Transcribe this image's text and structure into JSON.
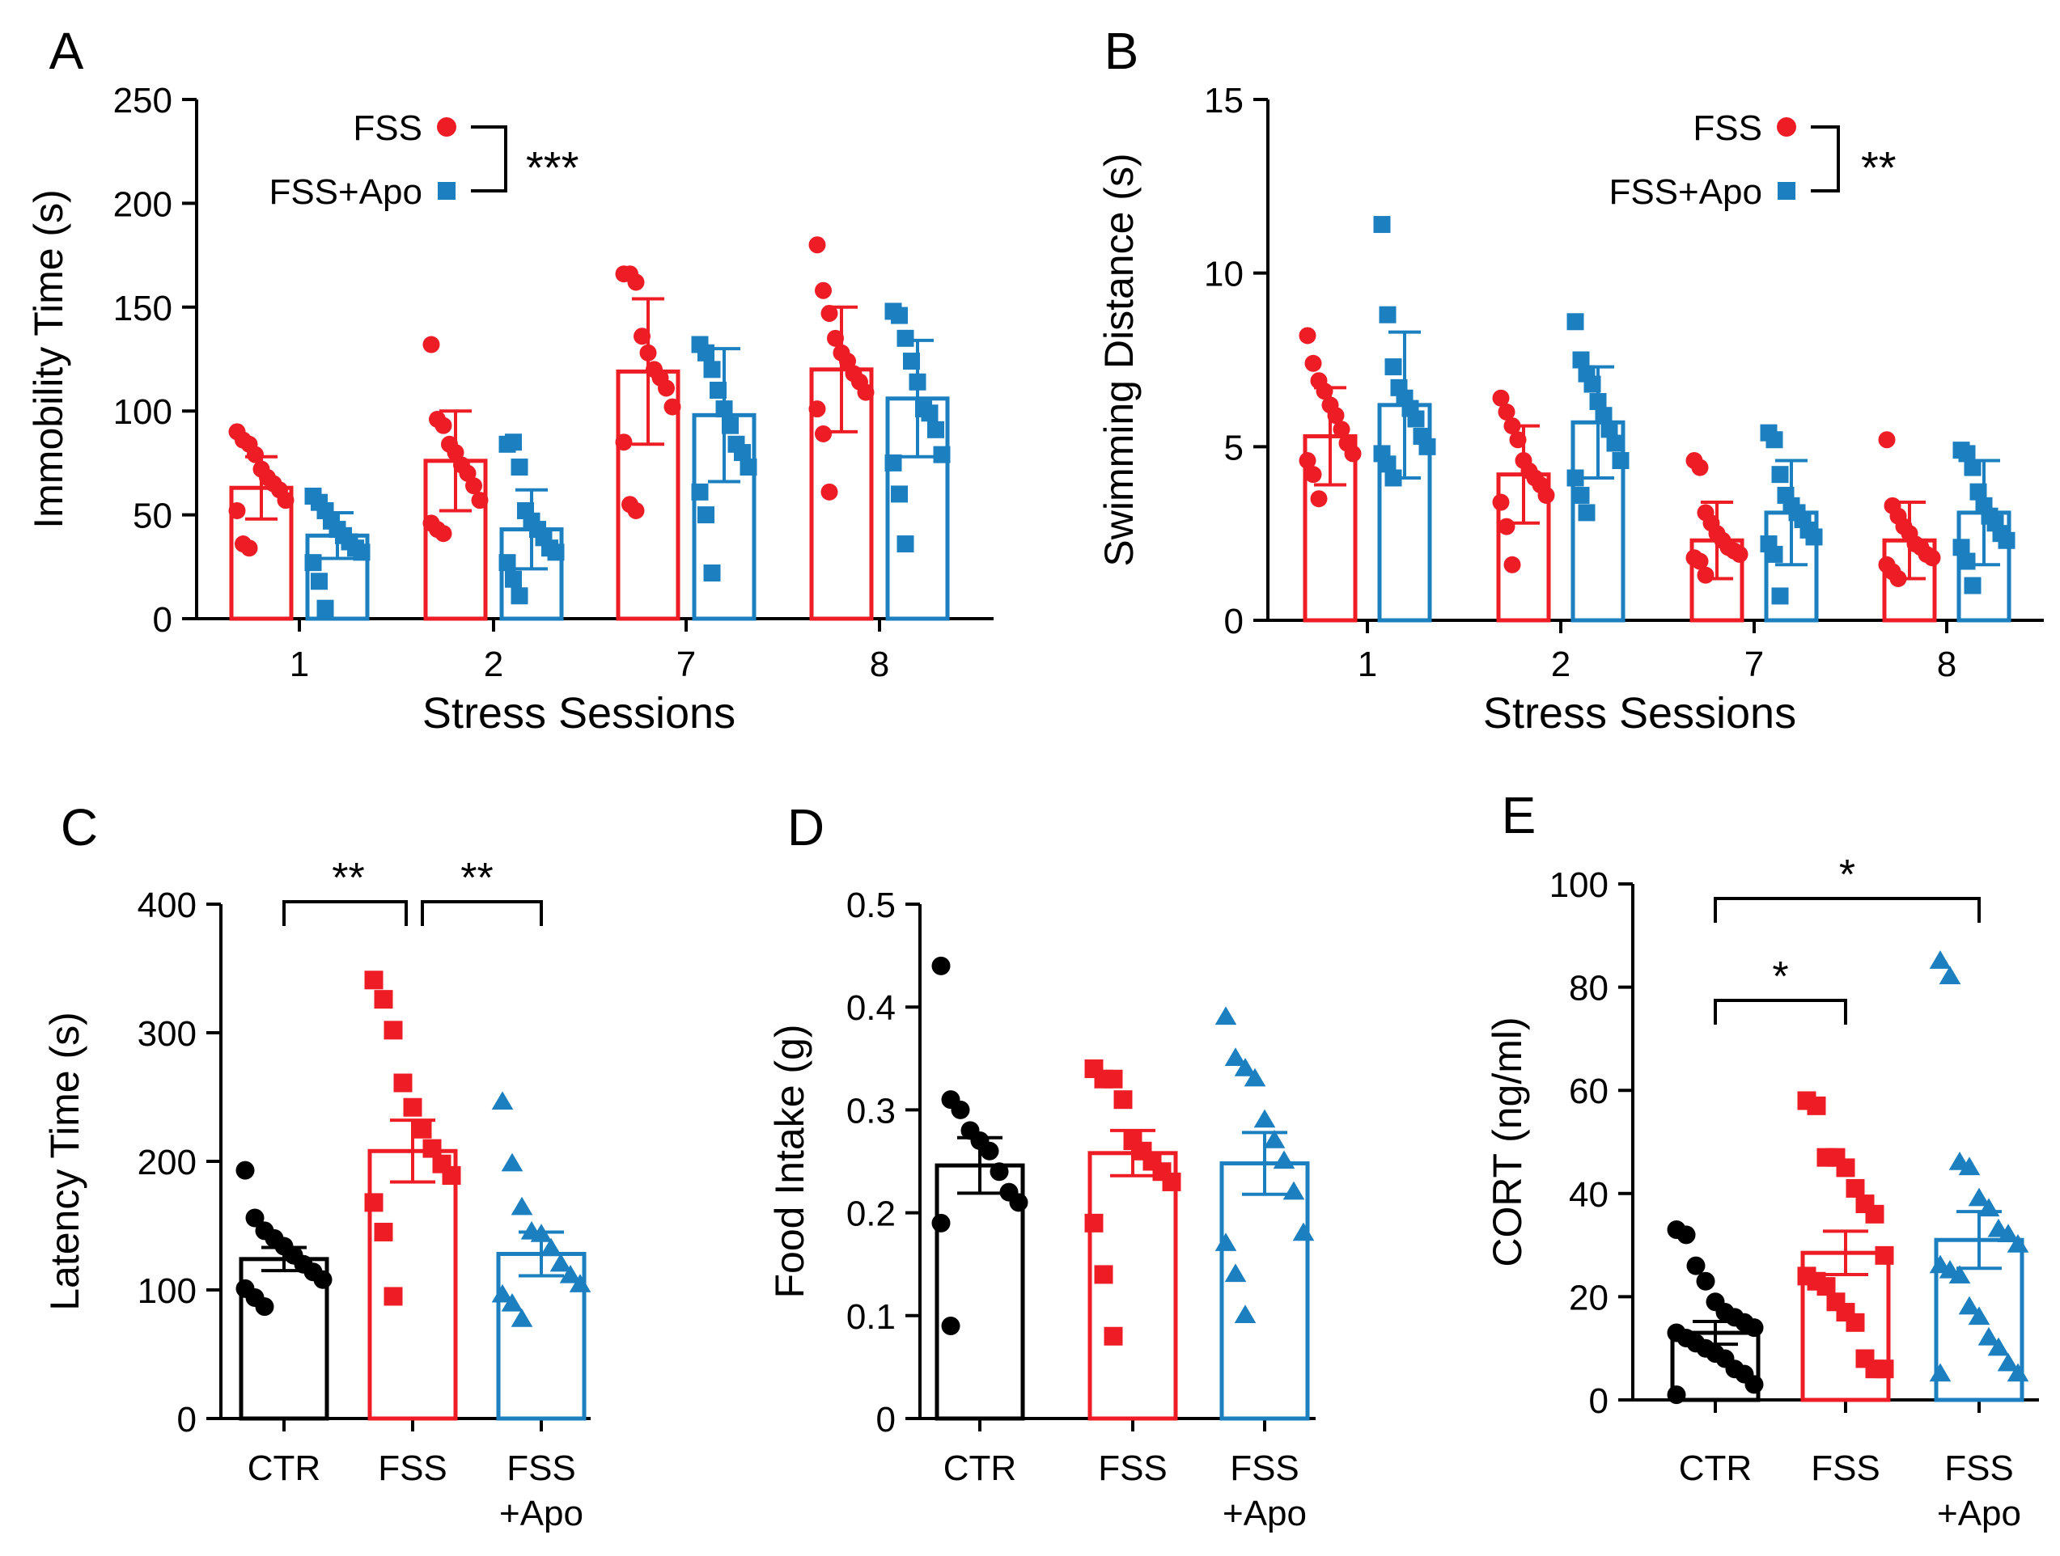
{
  "colors": {
    "ctr": "#000000",
    "fss": "#ee1c25",
    "fss_apo": "#1b7fc0",
    "axis": "#000000"
  },
  "chart_data": [
    {
      "panel": "A",
      "type": "bar",
      "xlabel": "Stress Sessions",
      "ylabel": "Immobility Time (s)",
      "ylim": [
        0,
        250
      ],
      "yticks": [
        "0",
        "50",
        "100",
        "150",
        "200",
        "250"
      ],
      "categories": [
        "1",
        "2",
        "7",
        "8"
      ],
      "legend": [
        "FSS",
        "FSS+Apo"
      ],
      "legend_placement": "top-left",
      "significance": "***",
      "series": [
        {
          "name": "FSS",
          "marker": "circle",
          "values": [
            63,
            76,
            119,
            120
          ],
          "sd": [
            15,
            24,
            35,
            30
          ],
          "points": [
            [
              90,
              86,
              84,
              79,
              72,
              68,
              65,
              62,
              57,
              52,
              36,
              34
            ],
            [
              132,
              96,
              93,
              84,
              80,
              74,
              70,
              64,
              57,
              46,
              43,
              41
            ],
            [
              166,
              166,
              162,
              136,
              128,
              120,
              116,
              111,
              102,
              85,
              55,
              52
            ],
            [
              180,
              158,
              147,
              135,
              128,
              124,
              118,
              114,
              109,
              101,
              89,
              61
            ]
          ]
        },
        {
          "name": "FSS+Apo",
          "marker": "square",
          "values": [
            40,
            43,
            98,
            106
          ],
          "sd": [
            11,
            19,
            32,
            28
          ],
          "points": [
            [
              59,
              56,
              52,
              47,
              43,
              40,
              37,
              34,
              32,
              27,
              18,
              5
            ],
            [
              84,
              85,
              73,
              52,
              47,
              43,
              39,
              34,
              32,
              27,
              19,
              11
            ],
            [
              132,
              128,
              120,
              110,
              101,
              93,
              84,
              80,
              73,
              61,
              50,
              22
            ],
            [
              148,
              146,
              135,
              124,
              114,
              101,
              99,
              91,
              79,
              75,
              60,
              36
            ]
          ]
        }
      ]
    },
    {
      "panel": "B",
      "type": "bar",
      "xlabel": "Stress Sessions",
      "ylabel": "Swimming Distance (s)",
      "ylim": [
        0,
        15
      ],
      "yticks": [
        "0",
        "5",
        "10",
        "15"
      ],
      "categories": [
        "1",
        "2",
        "7",
        "8"
      ],
      "legend": [
        "FSS",
        "FSS+Apo"
      ],
      "legend_placement": "top-right",
      "significance": "**",
      "series": [
        {
          "name": "FSS",
          "marker": "circle",
          "values": [
            5.3,
            4.2,
            2.3,
            2.3
          ],
          "sd": [
            1.4,
            1.4,
            1.1,
            1.1
          ],
          "points": [
            [
              8.2,
              7.4,
              6.9,
              6.6,
              6.2,
              5.9,
              5.5,
              5.1,
              4.8,
              4.6,
              4.2,
              3.5
            ],
            [
              6.4,
              6.0,
              5.6,
              5.2,
              4.6,
              4.3,
              4.1,
              3.9,
              3.6,
              3.4,
              2.7,
              1.6
            ],
            [
              4.6,
              4.4,
              3.1,
              2.8,
              2.5,
              2.3,
              2.1,
              2.0,
              1.9,
              1.8,
              1.7,
              1.3
            ],
            [
              5.2,
              3.3,
              3.0,
              2.7,
              2.5,
              2.2,
              2.1,
              1.9,
              1.8,
              1.6,
              1.4,
              1.2
            ]
          ]
        },
        {
          "name": "FSS+Apo",
          "marker": "square",
          "values": [
            6.2,
            5.7,
            3.1,
            3.1
          ],
          "sd": [
            2.1,
            1.6,
            1.5,
            1.5
          ],
          "points": [
            [
              11.4,
              8.8,
              7.3,
              6.7,
              6.4,
              6.1,
              5.8,
              5.3,
              5.0,
              4.8,
              4.5,
              4.1
            ],
            [
              8.6,
              7.5,
              7.1,
              6.8,
              6.3,
              5.9,
              5.5,
              5.1,
              4.6,
              4.1,
              3.6,
              3.1
            ],
            [
              5.4,
              5.2,
              4.2,
              3.6,
              3.3,
              3.1,
              2.9,
              2.6,
              2.4,
              2.2,
              1.9,
              0.7
            ],
            [
              4.9,
              4.8,
              4.4,
              3.7,
              3.3,
              3.0,
              2.8,
              2.5,
              2.3,
              2.1,
              1.7,
              1.0
            ]
          ]
        }
      ]
    },
    {
      "panel": "C",
      "type": "bar",
      "ylabel": "Latency Time (s)",
      "ylim": [
        0,
        400
      ],
      "yticks": [
        "0",
        "100",
        "200",
        "300",
        "400"
      ],
      "categories": [
        [
          "CTR"
        ],
        [
          "FSS"
        ],
        [
          "FSS",
          "+Apo"
        ]
      ],
      "groups": [
        {
          "name": "CTR",
          "marker": "circle",
          "mean": 124,
          "sem": 9,
          "points": [
            193,
            156,
            146,
            140,
            134,
            127,
            120,
            114,
            108,
            101,
            94,
            87
          ]
        },
        {
          "name": "FSS",
          "marker": "square",
          "mean": 208,
          "sem": 24,
          "points": [
            341,
            326,
            302,
            261,
            242,
            225,
            210,
            198,
            189,
            168,
            145,
            95
          ]
        },
        {
          "name": "FSS+Apo",
          "marker": "triangle",
          "mean": 128,
          "sem": 17,
          "points": [
            246,
            198,
            164,
            145,
            143,
            132,
            120,
            111,
            104,
            96,
            89,
            77
          ]
        }
      ],
      "brackets": [
        {
          "from": 0,
          "to": 1,
          "label": "**"
        },
        {
          "from": 1,
          "to": 2,
          "label": "**"
        }
      ]
    },
    {
      "panel": "D",
      "type": "bar",
      "ylabel": "Food Intake (g)",
      "ylim": [
        0,
        0.5
      ],
      "yticks": [
        "0",
        "0.1",
        "0.2",
        "0.3",
        "0.4",
        "0.5"
      ],
      "categories": [
        [
          "CTR"
        ],
        [
          "FSS"
        ],
        [
          "FSS",
          "+Apo"
        ]
      ],
      "groups": [
        {
          "name": "CTR",
          "marker": "circle",
          "mean": 0.246,
          "sem": 0.027,
          "points": [
            0.44,
            0.31,
            0.3,
            0.28,
            0.27,
            0.26,
            0.24,
            0.22,
            0.21,
            0.19,
            0.09
          ]
        },
        {
          "name": "FSS",
          "marker": "square",
          "mean": 0.258,
          "sem": 0.022,
          "points": [
            0.34,
            0.33,
            0.33,
            0.31,
            0.27,
            0.26,
            0.25,
            0.24,
            0.23,
            0.19,
            0.14,
            0.08
          ]
        },
        {
          "name": "FSS+Apo",
          "marker": "triangle",
          "mean": 0.248,
          "sem": 0.03,
          "points": [
            0.39,
            0.35,
            0.34,
            0.33,
            0.29,
            0.27,
            0.25,
            0.22,
            0.18,
            0.17,
            0.14,
            0.1
          ]
        }
      ],
      "brackets": []
    },
    {
      "panel": "E",
      "type": "bar",
      "ylabel": "CORT (ng/ml)",
      "ylim": [
        0,
        100
      ],
      "yticks": [
        "0",
        "20",
        "40",
        "60",
        "80",
        "100"
      ],
      "categories": [
        [
          "CTR"
        ],
        [
          "FSS"
        ],
        [
          "FSS",
          "+Apo"
        ]
      ],
      "groups": [
        {
          "name": "CTR",
          "marker": "circle",
          "mean": 13,
          "sem": 2.2,
          "points": [
            33,
            32,
            26,
            23,
            19,
            17,
            16,
            15,
            14,
            13,
            12,
            11,
            10,
            9,
            8,
            6,
            5,
            3,
            1
          ]
        },
        {
          "name": "FSS",
          "marker": "square",
          "mean": 28.5,
          "sem": 4.2,
          "points": [
            58,
            57,
            47,
            47,
            45,
            41,
            38,
            36,
            28,
            24,
            23,
            22,
            19,
            17,
            15,
            8,
            6,
            6
          ]
        },
        {
          "name": "FSS+Apo",
          "marker": "triangle",
          "mean": 31,
          "sem": 5.5,
          "points": [
            85,
            82,
            46,
            45,
            39,
            37,
            33,
            32,
            30,
            26,
            25,
            24,
            18,
            16,
            12,
            10,
            7,
            5,
            5
          ]
        }
      ],
      "brackets": [
        {
          "from": 0,
          "to": 1,
          "label": "*"
        },
        {
          "from": 0,
          "to": 2,
          "label": "*"
        }
      ]
    }
  ]
}
